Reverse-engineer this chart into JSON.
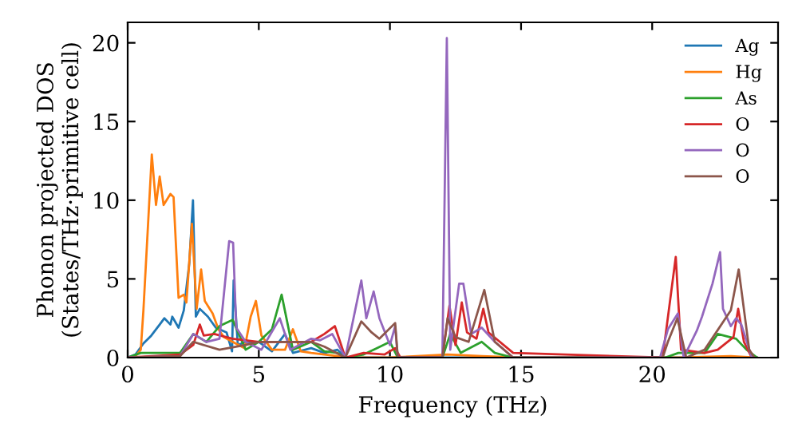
{
  "chart_data": {
    "type": "line",
    "xlabel": "Frequency (THz)",
    "ylabel": "Phonon projected DOS\n(States/THz·primitive cell)",
    "xlim": [
      0,
      24.8
    ],
    "ylim": [
      0,
      21.3
    ],
    "xticks": [
      0,
      5,
      10,
      15,
      20
    ],
    "yticks": [
      0,
      5,
      10,
      15,
      20
    ],
    "grid": false,
    "legend": "top right",
    "marker": "none",
    "line_style": "solid",
    "series": [
      {
        "name": "Ag",
        "color": "#1f77b4",
        "x": [
          0,
          0.3,
          0.6,
          0.9,
          1.22,
          1.4,
          1.63,
          1.7,
          1.94,
          2.14,
          2.35,
          2.49,
          2.6,
          2.75,
          3.06,
          3.36,
          3.77,
          3.98,
          4.04,
          4.2,
          4.5,
          5.0,
          5.5,
          6.0,
          6.3,
          7.0,
          7.5,
          8.0,
          8.3,
          24.0
        ],
        "values": [
          0,
          0.2,
          0.9,
          1.4,
          2.1,
          2.5,
          2.1,
          2.6,
          1.9,
          3.0,
          6.0,
          10.0,
          2.6,
          3.1,
          2.6,
          1.9,
          1.6,
          0.4,
          4.9,
          0.8,
          1.0,
          1.0,
          0.4,
          1.5,
          0.3,
          0.6,
          0.3,
          0.5,
          0,
          0
        ]
      },
      {
        "name": "Hg",
        "color": "#ff7f0e",
        "x": [
          0,
          0.3,
          0.5,
          0.6,
          0.92,
          1.08,
          1.22,
          1.37,
          1.63,
          1.75,
          1.94,
          2.14,
          2.24,
          2.45,
          2.63,
          2.8,
          2.94,
          3.24,
          3.46,
          3.67,
          4.0,
          4.46,
          4.69,
          4.89,
          5.1,
          5.5,
          6.0,
          6.3,
          6.6,
          7.0,
          7.5,
          8.0,
          8.3,
          10.0,
          12.2,
          13.5,
          15.0,
          21.0,
          23.0,
          24.0
        ],
        "values": [
          0,
          0.1,
          0.5,
          3.0,
          12.9,
          9.7,
          11.5,
          9.7,
          10.4,
          10.2,
          3.8,
          4.0,
          3.5,
          8.5,
          3.1,
          5.6,
          3.6,
          2.8,
          1.8,
          1.3,
          1.0,
          0.6,
          2.6,
          3.6,
          1.4,
          0.5,
          0.5,
          1.8,
          0.4,
          0.3,
          0.2,
          0.1,
          0,
          0,
          0.2,
          0.1,
          0,
          0,
          0.1,
          0
        ]
      },
      {
        "name": "As",
        "color": "#2ca02c",
        "x": [
          0,
          0.5,
          1.0,
          2.0,
          2.5,
          3.0,
          3.5,
          4.0,
          4.5,
          5.0,
          5.5,
          5.87,
          6.3,
          7.0,
          7.5,
          8.0,
          8.3,
          9.0,
          9.5,
          10.0,
          10.3,
          12.0,
          12.3,
          12.7,
          13.5,
          14.0,
          14.7,
          20.5,
          21.0,
          22.0,
          22.5,
          23.2,
          23.6,
          24.0
        ],
        "values": [
          0,
          0.3,
          0.3,
          0.3,
          1.5,
          1.0,
          2.0,
          2.4,
          0.5,
          1.0,
          1.8,
          4.0,
          0.5,
          1.0,
          0.4,
          0.3,
          0,
          0.2,
          0.6,
          1.0,
          0,
          0,
          1.5,
          0.3,
          1.0,
          0.3,
          0,
          0,
          0.3,
          0.3,
          1.5,
          1.2,
          0.5,
          0
        ]
      },
      {
        "name": "O",
        "color": "#d62728",
        "x": [
          0,
          2.0,
          2.5,
          2.75,
          2.9,
          3.3,
          4.0,
          5.0,
          6.0,
          7.0,
          7.5,
          7.9,
          8.3,
          9.0,
          9.8,
          10.2,
          10.4,
          12.0,
          12.27,
          12.5,
          12.74,
          12.94,
          13.3,
          13.56,
          13.76,
          14.7,
          20.4,
          20.9,
          21.1,
          22.0,
          22.5,
          23.1,
          23.28,
          23.5,
          23.8
        ],
        "values": [
          0,
          0.2,
          0.8,
          2.1,
          1.4,
          1.5,
          1.2,
          1.0,
          1.0,
          1.0,
          1.5,
          2.0,
          0,
          0.3,
          0.2,
          0.6,
          0,
          0,
          3.3,
          0.8,
          3.5,
          1.6,
          1.2,
          3.1,
          1.6,
          0.3,
          0,
          6.4,
          0.5,
          0.3,
          0.5,
          1.3,
          3.1,
          1.0,
          0
        ]
      },
      {
        "name": "O",
        "color": "#9467bd",
        "x": [
          0,
          2.0,
          2.5,
          3.0,
          3.5,
          3.87,
          4.02,
          4.14,
          4.5,
          5.1,
          5.8,
          6.2,
          7.0,
          7.34,
          7.8,
          8.3,
          8.91,
          9.1,
          9.38,
          9.6,
          10.0,
          10.2,
          10.3,
          12.0,
          12.17,
          12.3,
          12.64,
          12.8,
          13.1,
          13.5,
          14.0,
          14.7,
          20.3,
          20.6,
          20.98,
          21.2,
          21.7,
          21.9,
          22.3,
          22.59,
          22.7,
          23.0,
          23.2,
          23.4,
          23.8
        ],
        "values": [
          0,
          0.1,
          1.5,
          1.0,
          1.2,
          7.4,
          7.3,
          1.9,
          1.0,
          0.5,
          2.5,
          0.5,
          1.2,
          1.1,
          1.5,
          0,
          4.9,
          2.5,
          4.2,
          2.5,
          0.8,
          2.0,
          0,
          0,
          20.3,
          0.5,
          4.7,
          4.7,
          1.5,
          1.9,
          1.0,
          0,
          0,
          1.8,
          2.8,
          0,
          1.7,
          2.6,
          4.7,
          6.7,
          3.1,
          2.0,
          2.5,
          2.1,
          0
        ]
      },
      {
        "name": "O",
        "color": "#8c564b",
        "x": [
          0,
          2.0,
          2.5,
          3.5,
          4.5,
          5.0,
          6.0,
          7.0,
          7.5,
          8.3,
          8.91,
          9.3,
          9.6,
          10.2,
          10.3,
          12.0,
          12.2,
          12.5,
          13.0,
          13.6,
          14.0,
          14.7,
          20.4,
          20.6,
          20.96,
          21.3,
          22.0,
          23.0,
          23.3,
          23.7,
          23.9
        ],
        "values": [
          0,
          0.1,
          1.0,
          0.5,
          0.8,
          1.0,
          1.0,
          1.0,
          0.7,
          0,
          2.3,
          1.6,
          1.2,
          2.2,
          0,
          0,
          2.5,
          1.3,
          1.0,
          4.3,
          1.0,
          0,
          0,
          1.0,
          2.5,
          0,
          0.5,
          3.0,
          5.6,
          0.5,
          0
        ]
      }
    ]
  }
}
